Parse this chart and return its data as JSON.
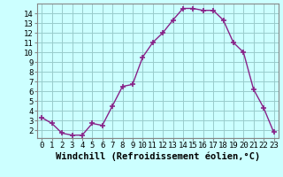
{
  "x": [
    0,
    1,
    2,
    3,
    4,
    5,
    6,
    7,
    8,
    9,
    10,
    11,
    12,
    13,
    14,
    15,
    16,
    17,
    18,
    19,
    20,
    21,
    22,
    23
  ],
  "y": [
    3.3,
    2.7,
    1.7,
    1.5,
    1.5,
    2.7,
    2.5,
    4.5,
    6.5,
    6.7,
    9.5,
    11.0,
    12.0,
    13.3,
    14.5,
    14.5,
    14.3,
    14.3,
    13.3,
    11.0,
    10.0,
    6.2,
    4.3,
    1.8
  ],
  "line_color": "#882288",
  "marker": "+",
  "marker_size": 4,
  "marker_linewidth": 1.2,
  "background_color": "#ccffff",
  "grid_color": "#99cccc",
  "xlabel": "Windchill (Refroidissement éolien,°C)",
  "xlabel_fontsize": 7.5,
  "tick_fontsize": 6.5,
  "xlim": [
    -0.5,
    23.5
  ],
  "ylim": [
    1.2,
    15.0
  ],
  "yticks": [
    2,
    3,
    4,
    5,
    6,
    7,
    8,
    9,
    10,
    11,
    12,
    13,
    14
  ],
  "xticks": [
    0,
    1,
    2,
    3,
    4,
    5,
    6,
    7,
    8,
    9,
    10,
    11,
    12,
    13,
    14,
    15,
    16,
    17,
    18,
    19,
    20,
    21,
    22,
    23
  ]
}
